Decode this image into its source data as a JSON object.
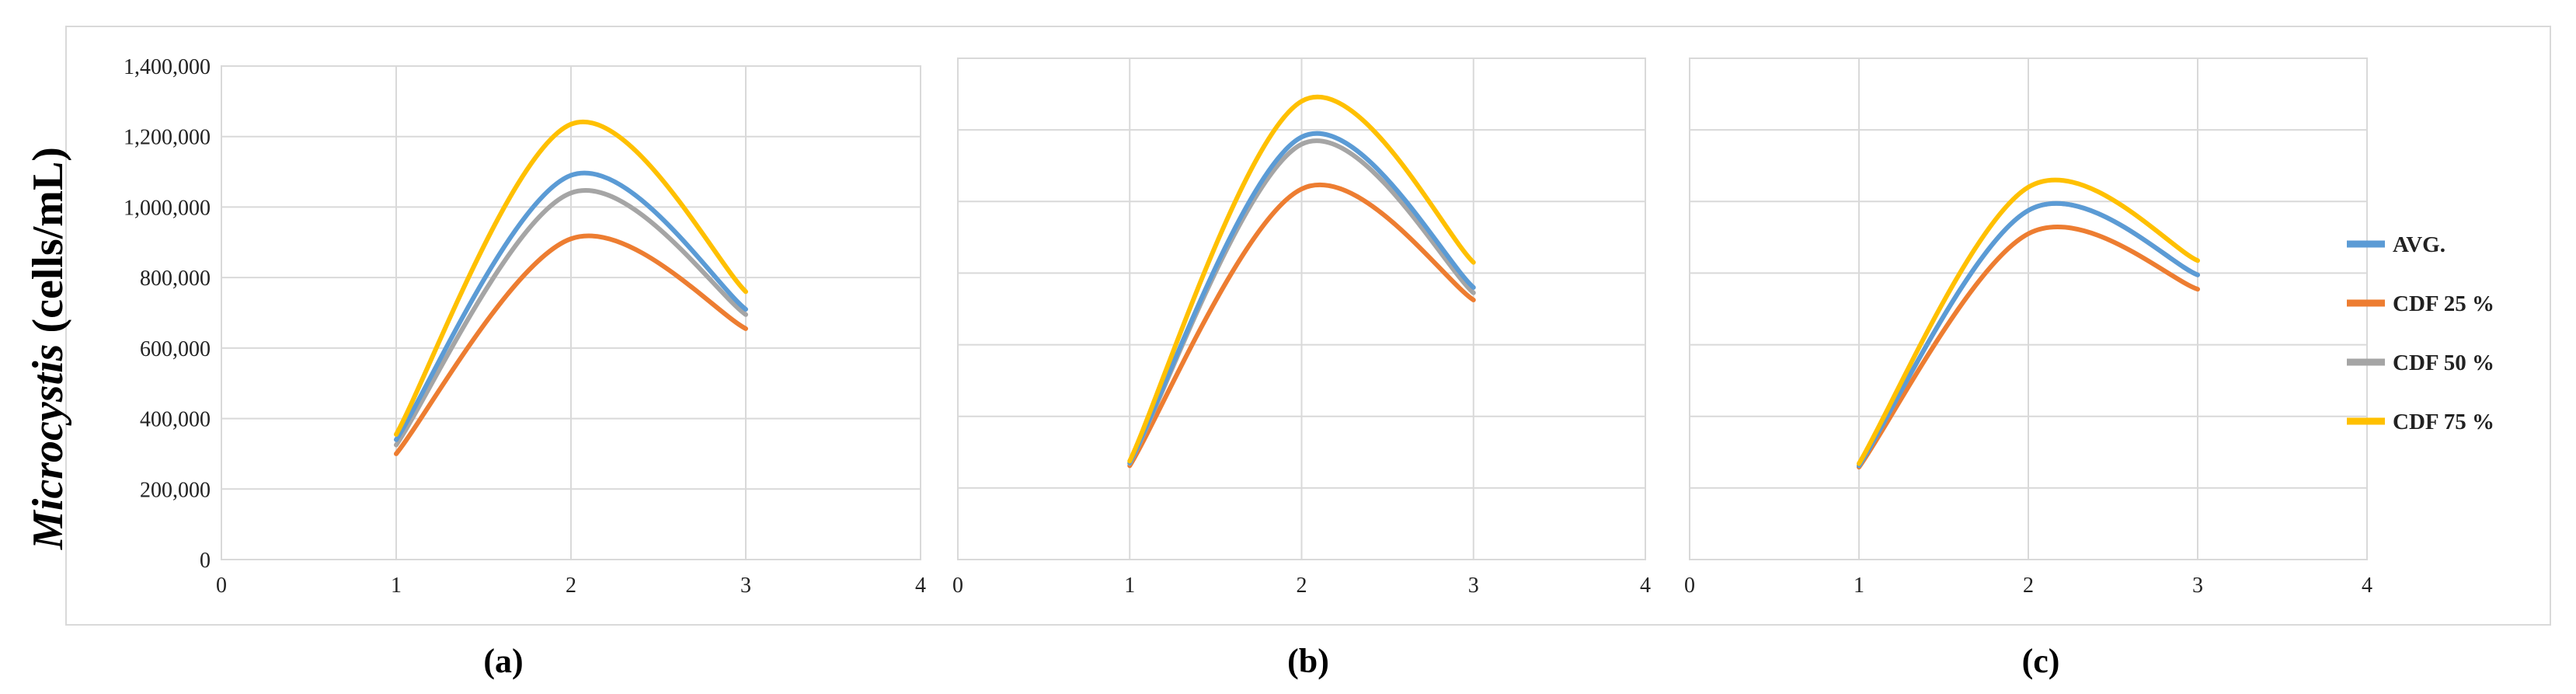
{
  "figure": {
    "ylabel_italic": "Microcystis",
    "ylabel_rest": " (cells/mL)"
  },
  "colors": {
    "avg": "#5B9BD5",
    "cdf25": "#ED7D31",
    "cdf50": "#A5A5A5",
    "cdf75": "#FFC000",
    "grid": "#D9D9D9",
    "frame": "#D9D9D9"
  },
  "legend": [
    {
      "key": "avg",
      "label": "AVG."
    },
    {
      "key": "cdf25",
      "label": "CDF 25 %"
    },
    {
      "key": "cdf50",
      "label": "CDF 50 %"
    },
    {
      "key": "cdf75",
      "label": "CDF 75 %"
    }
  ],
  "chart_data": [
    {
      "type": "line",
      "panel_label": "(a)",
      "xlim": [
        0,
        4
      ],
      "ylim": [
        0,
        1400000
      ],
      "x_ticks": [
        "0",
        "1",
        "2",
        "3",
        "4"
      ],
      "y_ticks": [
        "0",
        "200,000",
        "400,000",
        "600,000",
        "800,000",
        "1,000,000",
        "1,200,000",
        "1,400,000"
      ],
      "x": [
        1,
        2,
        3
      ],
      "series": [
        {
          "key": "avg",
          "name": "AVG.",
          "values": [
            340000,
            1090000,
            710000
          ]
        },
        {
          "key": "cdf25",
          "name": "CDF 25 %",
          "values": [
            300000,
            910000,
            655000
          ]
        },
        {
          "key": "cdf50",
          "name": "CDF 50 %",
          "values": [
            325000,
            1040000,
            695000
          ]
        },
        {
          "key": "cdf75",
          "name": "CDF 75 %",
          "values": [
            355000,
            1235000,
            760000
          ]
        }
      ]
    },
    {
      "type": "line",
      "panel_label": "(b)",
      "xlim": [
        0,
        4
      ],
      "ylim": [
        0,
        1400000
      ],
      "x_ticks": [
        "0",
        "1",
        "2",
        "3",
        "4"
      ],
      "y_ticks": [],
      "x": [
        1,
        2,
        3
      ],
      "series": [
        {
          "key": "avg",
          "name": "AVG.",
          "values": [
            270000,
            1180000,
            760000
          ]
        },
        {
          "key": "cdf25",
          "name": "CDF 25 %",
          "values": [
            262000,
            1035000,
            725000
          ]
        },
        {
          "key": "cdf50",
          "name": "CDF 50 %",
          "values": [
            268000,
            1160000,
            745000
          ]
        },
        {
          "key": "cdf75",
          "name": "CDF 75 %",
          "values": [
            275000,
            1280000,
            830000
          ]
        }
      ]
    },
    {
      "type": "line",
      "panel_label": "(c)",
      "xlim": [
        0,
        4
      ],
      "ylim": [
        0,
        1400000
      ],
      "x_ticks": [
        "0",
        "1",
        "2",
        "3",
        "4"
      ],
      "y_ticks": [],
      "x": [
        1,
        2,
        3
      ],
      "series": [
        {
          "key": "avg",
          "name": "AVG.",
          "values": [
            262000,
            975000,
            795000
          ]
        },
        {
          "key": "cdf25",
          "name": "CDF 25 %",
          "values": [
            258000,
            910000,
            755000
          ]
        },
        {
          "key": "cdf50",
          "name": "CDF 50 %",
          "values": [
            262000,
            975000,
            795000
          ]
        },
        {
          "key": "cdf75",
          "name": "CDF 75 %",
          "values": [
            268000,
            1040000,
            835000
          ]
        }
      ]
    }
  ]
}
